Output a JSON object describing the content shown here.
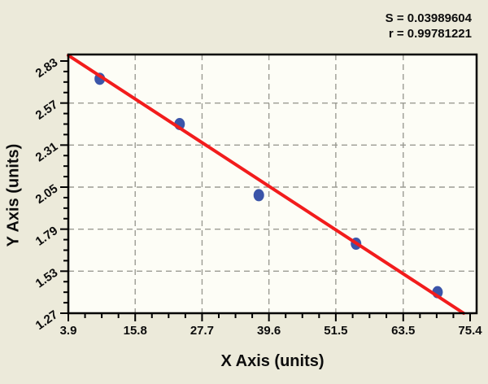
{
  "stats": {
    "s_line": "S = 0.03989604",
    "r_line": "r = 0.99781221"
  },
  "chart_data": {
    "type": "scatter",
    "xlabel": "X Axis (units)",
    "ylabel": "Y Axis (units)",
    "xlim": [
      3.9,
      75.4
    ],
    "ylim": [
      1.27,
      2.83
    ],
    "x_ticks": [
      3.9,
      15.8,
      27.7,
      39.6,
      51.5,
      63.5,
      75.4
    ],
    "x_tick_labels": [
      "3.9",
      "15.8",
      "27.7",
      "39.6",
      "51.5",
      "63.5",
      "75.4"
    ],
    "y_ticks": [
      2.83,
      2.57,
      2.31,
      2.05,
      1.79,
      1.53,
      1.27
    ],
    "y_tick_labels": [
      "2.83",
      "2.57",
      "2.31",
      "2.05",
      "1.79",
      "1.53",
      "1.27"
    ],
    "minor_ticks_per_interval": 3,
    "grid": "dashed",
    "legend": "none",
    "points": [
      {
        "x": 9.5,
        "y": 2.72
      },
      {
        "x": 23.7,
        "y": 2.44
      },
      {
        "x": 37.8,
        "y": 2.0
      },
      {
        "x": 55.1,
        "y": 1.7
      },
      {
        "x": 69.6,
        "y": 1.4
      }
    ],
    "fit_line": {
      "x1": 3.9,
      "y1": 2.865,
      "x2": 74.25,
      "y2": 1.27
    },
    "colors": {
      "background": "#eceada",
      "plot_background": "#fdfdf6",
      "frame": "#000000",
      "grid": "#9b9b93",
      "fit_line": "#f21c1c",
      "point": "#3b55a9",
      "text": "#0d0d0d"
    }
  }
}
